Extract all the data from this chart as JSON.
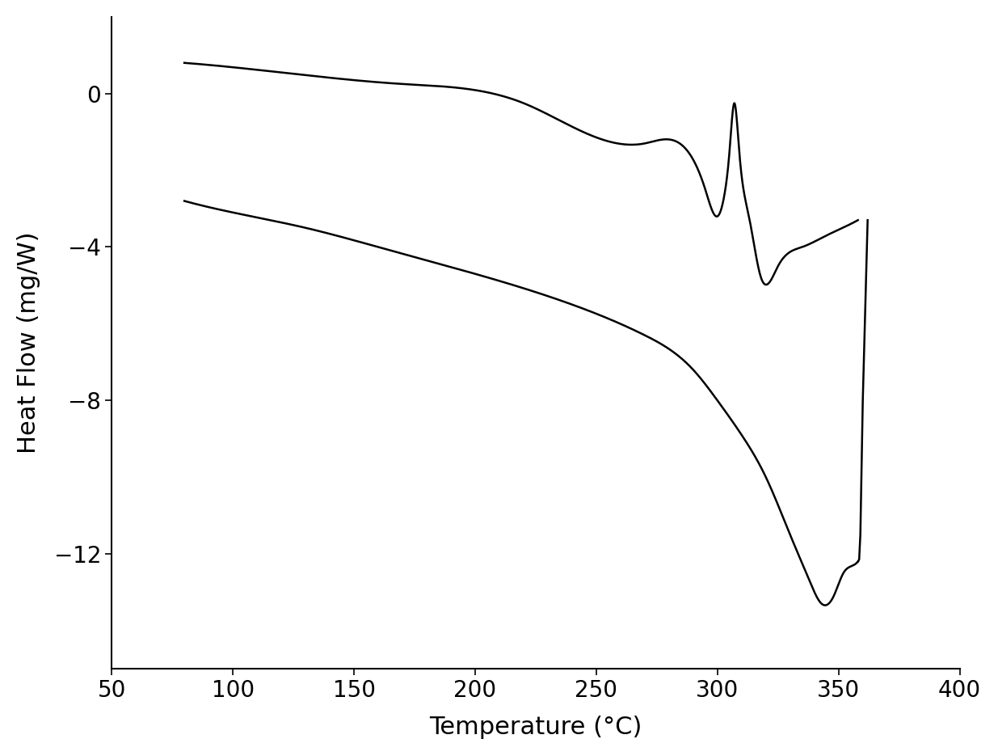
{
  "xlabel": "Temperature (°C)",
  "ylabel": "Heat Flow (mg/W)",
  "xlim": [
    50,
    400
  ],
  "ylim": [
    -15,
    2
  ],
  "xticks": [
    50,
    100,
    150,
    200,
    250,
    300,
    350,
    400
  ],
  "yticks": [
    0,
    -4,
    -8,
    -12
  ],
  "line_color": "#000000",
  "line_width": 1.8,
  "background_color": "#ffffff",
  "xlabel_fontsize": 22,
  "ylabel_fontsize": 22,
  "tick_fontsize": 20
}
